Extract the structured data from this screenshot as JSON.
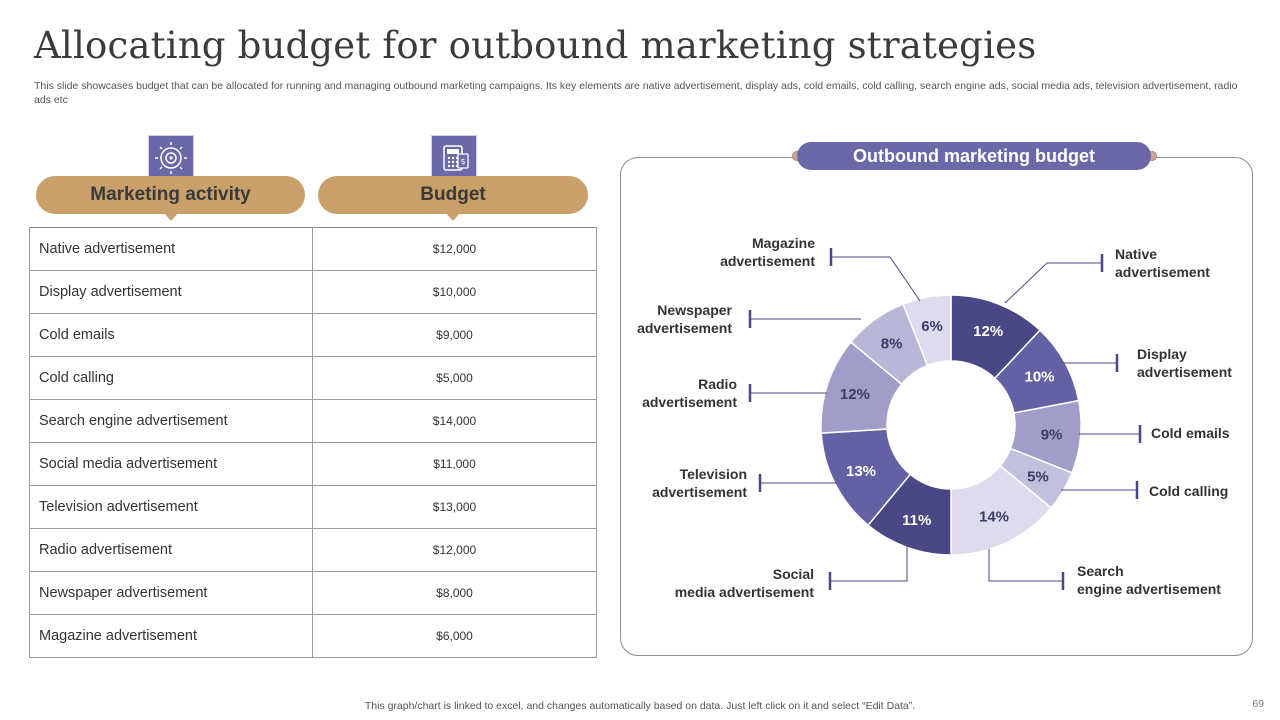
{
  "title": "Allocating budget for outbound marketing strategies",
  "subtitle": "This slide showcases budget that can be allocated for running and managing outbound marketing campaigns. Its key elements are native advertisement, display ads, cold emails, cold calling, search engine ads, social media ads, television advertisement, radio ads etc",
  "table": {
    "header_activity": "Marketing activity",
    "header_budget": "Budget",
    "rows": [
      {
        "activity": "Native advertisement",
        "budget": "$12,000"
      },
      {
        "activity": "Display advertisement",
        "budget": "$10,000"
      },
      {
        "activity": "Cold emails",
        "budget": "$9,000"
      },
      {
        "activity": "Cold calling",
        "budget": "$5,000"
      },
      {
        "activity": "Search engine advertisement",
        "budget": "$14,000"
      },
      {
        "activity": "Social media advertisement",
        "budget": "$11,000"
      },
      {
        "activity": "Television advertisement",
        "budget": "$13,000"
      },
      {
        "activity": "Radio advertisement",
        "budget": "$12,000"
      },
      {
        "activity": "Newspaper advertisement",
        "budget": "$8,000"
      },
      {
        "activity": "Magazine advertisement",
        "budget": "$6,000"
      }
    ]
  },
  "icons": {
    "activity_icon": "target-gear-icon",
    "budget_icon": "calculator-money-icon"
  },
  "chart_data": {
    "type": "pie",
    "title": "Outbound marketing budget",
    "slices": [
      {
        "label": "Native advertisement",
        "lines": [
          "Native",
          "advertisement"
        ],
        "value": 12,
        "display": "12%",
        "color": "#4a4785"
      },
      {
        "label": "Display advertisement",
        "lines": [
          "Display",
          "advertisement"
        ],
        "value": 10,
        "display": "10%",
        "color": "#6360a4"
      },
      {
        "label": "Cold emails",
        "lines": [
          "Cold emails"
        ],
        "value": 9,
        "display": "9%",
        "color": "#9f9dc9"
      },
      {
        "label": "Cold calling",
        "lines": [
          "Cold  calling"
        ],
        "value": 5,
        "display": "5%",
        "color": "#c1c0dd"
      },
      {
        "label": "Search engine advertisement",
        "lines": [
          "Search",
          "engine advertisement"
        ],
        "value": 14,
        "display": "14%",
        "color": "#dddcee"
      },
      {
        "label": "Social media advertisement",
        "lines": [
          "Social",
          "media advertisement"
        ],
        "value": 11,
        "display": "11%",
        "color": "#4a4785"
      },
      {
        "label": "Television advertisement",
        "lines": [
          "Television",
          "advertisement"
        ],
        "value": 13,
        "display": "13%",
        "color": "#6360a4"
      },
      {
        "label": "Radio advertisement",
        "lines": [
          "Radio",
          "advertisement"
        ],
        "value": 12,
        "display": "12%",
        "color": "#9f9dc9"
      },
      {
        "label": "Newspaper advertisement",
        "lines": [
          "Newspaper",
          "advertisement"
        ],
        "value": 8,
        "display": "8%",
        "color": "#b8b7d8"
      },
      {
        "label": "Magazine advertisement",
        "lines": [
          "Magazine",
          "advertisement"
        ],
        "value": 6,
        "display": "6%",
        "color": "#dddcee"
      }
    ],
    "colors": {
      "accent": "#6b68a8",
      "header_pill": "#c9a06a",
      "leader_line": "#4a4785"
    }
  },
  "footer": "This graph/chart is linked to excel,  and changes automatically based on data. Just left click on it and select “Edit Data”.",
  "page_number": "69"
}
